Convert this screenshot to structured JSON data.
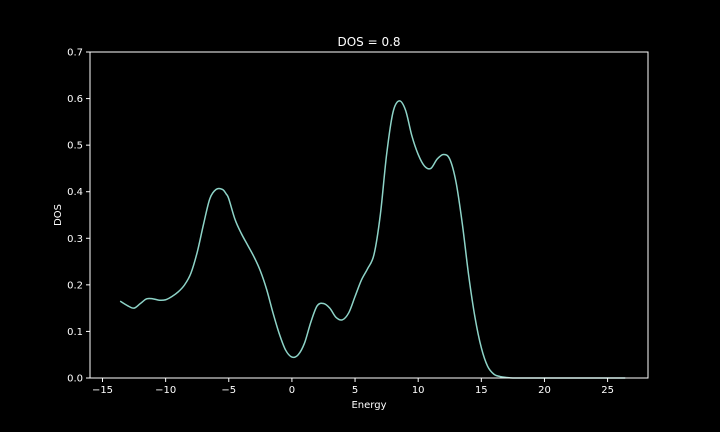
{
  "chart_data": {
    "type": "line",
    "title": "DOS = 0.8",
    "xlabel": "Energy",
    "ylabel": "DOS",
    "xlim": [
      -15.99,
      28.2
    ],
    "ylim": [
      0,
      0.7
    ],
    "xticks": [
      -15,
      -10,
      -5,
      0,
      5,
      10,
      15,
      20,
      25
    ],
    "yticks": [
      0.0,
      0.1,
      0.2,
      0.3,
      0.4,
      0.5,
      0.6,
      0.7
    ],
    "xtick_labels": [
      "−15",
      "−10",
      "−5",
      "0",
      "5",
      "10",
      "15",
      "20",
      "25"
    ],
    "ytick_labels": [
      "0.0",
      "0.1",
      "0.2",
      "0.3",
      "0.4",
      "0.5",
      "0.6",
      "0.7"
    ],
    "grid": false,
    "legend": "none",
    "line_color": "#8dd3c7",
    "background_color": "#000000",
    "foreground_color": "#ffffff",
    "series": [
      {
        "x": [
          -13.6,
          -13.0,
          -12.5,
          -12.0,
          -11.5,
          -11.0,
          -10.5,
          -10.0,
          -9.5,
          -9.0,
          -8.5,
          -8.0,
          -7.5,
          -7.0,
          -6.5,
          -6.0,
          -5.5,
          -5.2,
          -5.0,
          -4.5,
          -4.0,
          -3.5,
          -3.0,
          -2.5,
          -2.0,
          -1.5,
          -1.0,
          -0.5,
          0.0,
          0.5,
          1.0,
          1.5,
          2.0,
          2.5,
          3.0,
          3.5,
          4.0,
          4.5,
          5.0,
          5.5,
          6.0,
          6.5,
          7.0,
          7.5,
          8.0,
          8.5,
          9.0,
          9.5,
          10.0,
          10.5,
          11.0,
          11.5,
          12.0,
          12.5,
          13.0,
          13.5,
          14.0,
          14.5,
          15.0,
          15.5,
          16.0,
          16.5,
          17.0,
          17.5,
          18.0,
          18.5,
          19.0,
          19.5,
          20.0,
          21.0,
          22.0,
          23.0,
          24.0,
          25.0,
          26.4
        ],
        "y": [
          0.165,
          0.155,
          0.15,
          0.16,
          0.17,
          0.17,
          0.167,
          0.168,
          0.175,
          0.185,
          0.2,
          0.225,
          0.27,
          0.33,
          0.385,
          0.405,
          0.405,
          0.395,
          0.385,
          0.34,
          0.31,
          0.285,
          0.26,
          0.23,
          0.19,
          0.14,
          0.095,
          0.06,
          0.045,
          0.05,
          0.075,
          0.12,
          0.155,
          0.16,
          0.15,
          0.13,
          0.125,
          0.14,
          0.175,
          0.21,
          0.235,
          0.265,
          0.35,
          0.48,
          0.57,
          0.595,
          0.575,
          0.52,
          0.48,
          0.455,
          0.45,
          0.47,
          0.48,
          0.47,
          0.42,
          0.33,
          0.22,
          0.13,
          0.065,
          0.025,
          0.008,
          0.003,
          0.001,
          0.0,
          0.0,
          0.0,
          0.0,
          0.0,
          0.0,
          0.0,
          0.0,
          0.0,
          0.0,
          0.0,
          0.0
        ]
      }
    ]
  }
}
